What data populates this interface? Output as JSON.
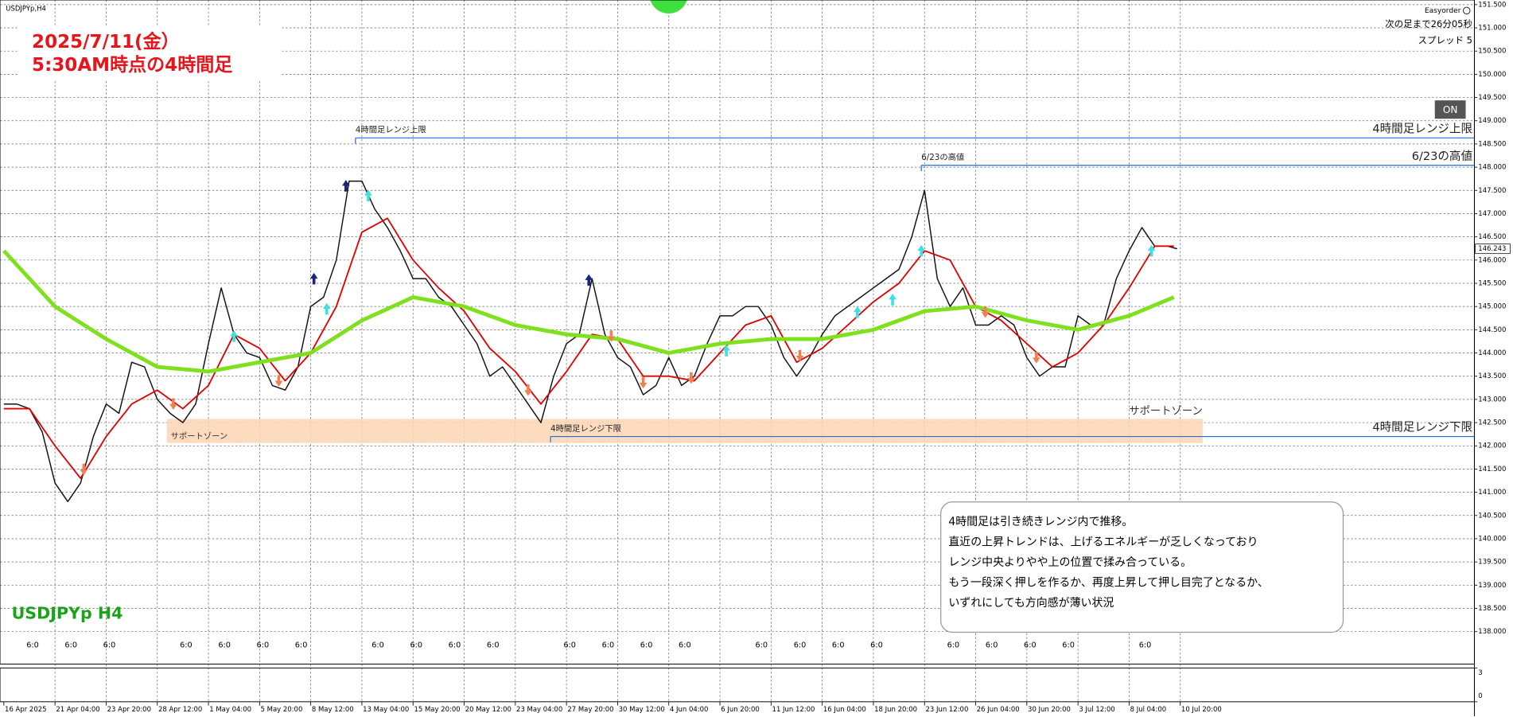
{
  "chart_data": {
    "type": "line",
    "symbol_label": "USDJPYp,H4",
    "title_lines": [
      "2025/7/11(金）",
      "5:30AM時点の4時間足"
    ],
    "watermark": "USDJPYp H4",
    "panel": {
      "name": "Easyorder",
      "countdown": "次の足まで26分05秒",
      "spread": "スプレッド 5",
      "button": "ON"
    },
    "annotation_lines": [
      "4時間足は引き続きレンジ内で推移。",
      "直近の上昇トレンドは、上げるエネルギーが乏しくなっており",
      "レンジ中央よりやや上の位置で揉み合っている。",
      "もう一段深く押しを作るか、再度上昇して押し目完了となるか、",
      "いずれにしても方向感が薄い状況"
    ],
    "xlim": [
      -1.2,
      460
    ],
    "xticks": [
      {
        "value": 0,
        "label": "16 Apr 2025"
      },
      {
        "value": 16,
        "label": "21 Apr 04:00"
      },
      {
        "value": 32,
        "label": "23 Apr 20:00"
      },
      {
        "value": 48,
        "label": "28 Apr 12:00"
      },
      {
        "value": 64,
        "label": "1 May 04:00"
      },
      {
        "value": 80,
        "label": "5 May 20:00"
      },
      {
        "value": 96,
        "label": "8 May 12:00"
      },
      {
        "value": 112,
        "label": "13 May 04:00"
      },
      {
        "value": 128,
        "label": "15 May 20:00"
      },
      {
        "value": 144,
        "label": "20 May 12:00"
      },
      {
        "value": 160,
        "label": "23 May 04:00"
      },
      {
        "value": 176,
        "label": "27 May 20:00"
      },
      {
        "value": 192,
        "label": "30 May 12:00"
      },
      {
        "value": 208,
        "label": "4 Jun 04:00"
      },
      {
        "value": 224,
        "label": "6 Jun 20:00"
      },
      {
        "value": 240,
        "label": "11 Jun 12:00"
      },
      {
        "value": 256,
        "label": "16 Jun 04:00"
      },
      {
        "value": 272,
        "label": "18 Jun 20:00"
      },
      {
        "value": 288,
        "label": "23 Jun 12:00"
      },
      {
        "value": 304,
        "label": "26 Jun 04:00"
      },
      {
        "value": 320,
        "label": "30 Jun 20:00"
      },
      {
        "value": 336,
        "label": "3 Jul 12:00"
      },
      {
        "value": 352,
        "label": "8 Jul 04:00"
      },
      {
        "value": 368,
        "label": "10 Jul 20:00"
      }
    ],
    "session_ticks": [
      {
        "value": 9,
        "label": "6:0"
      },
      {
        "value": 21,
        "label": "6:0"
      },
      {
        "value": 33,
        "label": "6:0"
      },
      {
        "value": 57,
        "label": "6:0"
      },
      {
        "value": 69,
        "label": "6:0"
      },
      {
        "value": 81,
        "label": "6:0"
      },
      {
        "value": 93,
        "label": "6:0"
      },
      {
        "value": 117,
        "label": "6:0"
      },
      {
        "value": 129,
        "label": "6:0"
      },
      {
        "value": 141,
        "label": "6:0"
      },
      {
        "value": 153,
        "label": "6:0"
      },
      {
        "value": 177,
        "label": "6:0"
      },
      {
        "value": 189,
        "label": "6:0"
      },
      {
        "value": 201,
        "label": "6:0"
      },
      {
        "value": 213,
        "label": "6:0"
      },
      {
        "value": 237,
        "label": "6:0"
      },
      {
        "value": 249,
        "label": "6:0"
      },
      {
        "value": 261,
        "label": "6:0"
      },
      {
        "value": 273,
        "label": "6:0"
      },
      {
        "value": 297,
        "label": "6:0"
      },
      {
        "value": 309,
        "label": "6:0"
      },
      {
        "value": 321,
        "label": "6:0"
      },
      {
        "value": 333,
        "label": "6:0"
      },
      {
        "value": 357,
        "label": "6:0"
      }
    ],
    "ylim": [
      137.3,
      151.6
    ],
    "yticks": [
      {
        "value": 138,
        "label": "138.000"
      },
      {
        "value": 138.5,
        "label": "138.500"
      },
      {
        "value": 139,
        "label": "139.000"
      },
      {
        "value": 139.5,
        "label": "139.500"
      },
      {
        "value": 140,
        "label": "140.000"
      },
      {
        "value": 140.5,
        "label": "140.500"
      },
      {
        "value": 141,
        "label": "141.000"
      },
      {
        "value": 141.5,
        "label": "141.500"
      },
      {
        "value": 142,
        "label": "142.000"
      },
      {
        "value": 142.5,
        "label": "142.500"
      },
      {
        "value": 143,
        "label": "143.000"
      },
      {
        "value": 143.5,
        "label": "143.500"
      },
      {
        "value": 144,
        "label": "144.000"
      },
      {
        "value": 144.5,
        "label": "144.500"
      },
      {
        "value": 145,
        "label": "145.000"
      },
      {
        "value": 145.5,
        "label": "145.500"
      },
      {
        "value": 146,
        "label": "146.000"
      },
      {
        "value": 146.5,
        "label": "146.500"
      },
      {
        "value": 147,
        "label": "147.000"
      },
      {
        "value": 147.5,
        "label": "147.500"
      },
      {
        "value": 148,
        "label": "148.000"
      },
      {
        "value": 148.5,
        "label": "148.500"
      },
      {
        "value": 149,
        "label": "149.000"
      },
      {
        "value": 149.5,
        "label": "149.500"
      },
      {
        "value": 150,
        "label": "150.000"
      },
      {
        "value": 150.5,
        "label": "150.500"
      },
      {
        "value": 151,
        "label": "151.000"
      },
      {
        "value": 151.5,
        "label": "151.500"
      }
    ],
    "grid": true,
    "last_price": 146.243,
    "series": [
      {
        "color": "#111111",
        "width": 1.2,
        "x": [
          0,
          4,
          8,
          12,
          16,
          20,
          24,
          28,
          32,
          36,
          40,
          44,
          48,
          52,
          56,
          60,
          64,
          68,
          72,
          76,
          80,
          84,
          88,
          92,
          96,
          100,
          104,
          108,
          112,
          116,
          120,
          124,
          128,
          132,
          136,
          140,
          144,
          148,
          152,
          156,
          160,
          164,
          168,
          172,
          176,
          180,
          184,
          188,
          192,
          196,
          200,
          204,
          208,
          212,
          216,
          220,
          224,
          228,
          232,
          236,
          240,
          244,
          248,
          252,
          256,
          260,
          264,
          268,
          272,
          276,
          280,
          284,
          288,
          292,
          296,
          300,
          304,
          308,
          312,
          316,
          320,
          324,
          328,
          332,
          336,
          340,
          344,
          348,
          352,
          356,
          360,
          364,
          367
        ],
        "values": [
          142.9,
          142.9,
          142.8,
          142.3,
          141.2,
          140.8,
          141.2,
          142.2,
          142.9,
          142.7,
          143.8,
          143.7,
          143.0,
          142.7,
          142.5,
          142.9,
          144.2,
          145.4,
          144.4,
          144.0,
          143.9,
          143.3,
          143.2,
          143.7,
          145.0,
          145.2,
          146.0,
          147.7,
          147.7,
          147.1,
          146.7,
          146.2,
          145.6,
          145.6,
          145.2,
          145.0,
          144.6,
          144.2,
          143.5,
          143.7,
          143.3,
          142.9,
          142.5,
          143.5,
          144.2,
          144.4,
          145.6,
          144.4,
          143.9,
          143.7,
          143.1,
          143.3,
          143.9,
          143.3,
          143.5,
          144.2,
          144.8,
          144.8,
          145.0,
          145.0,
          144.6,
          143.9,
          143.5,
          143.9,
          144.4,
          144.8,
          145.0,
          145.2,
          145.4,
          145.6,
          145.8,
          146.5,
          147.5,
          145.6,
          145.0,
          145.4,
          144.6,
          144.6,
          144.8,
          144.6,
          143.9,
          143.5,
          143.7,
          143.7,
          144.8,
          144.6,
          144.6,
          145.6,
          146.2,
          146.7,
          146.3,
          146.3,
          146.243
        ]
      },
      {
        "color": "#e00000",
        "width": 1.5,
        "x": [
          0,
          8,
          16,
          24,
          32,
          40,
          48,
          56,
          64,
          72,
          80,
          88,
          96,
          104,
          112,
          120,
          128,
          136,
          144,
          152,
          160,
          168,
          176,
          184,
          192,
          200,
          208,
          216,
          224,
          232,
          240,
          248,
          256,
          264,
          272,
          280,
          288,
          296,
          304,
          312,
          320,
          328,
          336,
          344,
          352,
          360,
          366
        ],
        "values": [
          142.8,
          142.8,
          142.0,
          141.3,
          142.2,
          142.9,
          143.2,
          142.8,
          143.3,
          144.4,
          144.1,
          143.4,
          144.0,
          145.0,
          146.6,
          146.9,
          146.0,
          145.4,
          144.9,
          144.1,
          143.6,
          142.9,
          143.6,
          144.4,
          144.3,
          143.5,
          143.5,
          143.4,
          144.0,
          144.6,
          144.8,
          143.8,
          144.1,
          144.6,
          145.1,
          145.5,
          146.2,
          146.0,
          145.0,
          144.7,
          144.2,
          143.7,
          144.0,
          144.6,
          145.4,
          146.3,
          146.3
        ]
      },
      {
        "color": "#7fe01e",
        "width": 4,
        "x": [
          0,
          16,
          32,
          48,
          64,
          80,
          96,
          112,
          128,
          144,
          160,
          176,
          192,
          208,
          224,
          240,
          256,
          272,
          288,
          304,
          320,
          336,
          352,
          366
        ],
        "values": [
          146.2,
          145.0,
          144.3,
          143.7,
          143.6,
          143.8,
          144.0,
          144.7,
          145.2,
          145.0,
          144.6,
          144.4,
          144.3,
          144.0,
          144.2,
          144.3,
          144.3,
          144.5,
          144.9,
          145.0,
          144.7,
          144.5,
          144.8,
          145.2
        ]
      }
    ],
    "levels": [
      {
        "label": "4時間足レンジ上限",
        "value": 148.63,
        "start": 110,
        "color": "#1e6fd9"
      },
      {
        "label": "6/23の高値",
        "value": 148.04,
        "start": 287,
        "color": "#1e6fd9"
      },
      {
        "label": "4時間足レンジ下限",
        "value": 142.2,
        "start": 171,
        "color": "#1e6fd9"
      }
    ],
    "zone": {
      "label": "サポートゾーン",
      "top": 142.58,
      "bottom": 142.06,
      "start": 51,
      "end": 375,
      "color": "#fcd5b4"
    },
    "signals": [
      {
        "direction": "up",
        "color": "#1a237e",
        "x": [
          97,
          107,
          183
        ],
        "values": [
          145.6,
          147.6,
          145.57
        ]
      },
      {
        "direction": "up",
        "color": "#3fe0e0",
        "x": [
          72,
          101,
          114,
          226,
          267,
          278,
          287,
          359
        ],
        "values": [
          144.36,
          144.95,
          147.39,
          144.05,
          144.88,
          145.15,
          146.2,
          146.2
        ]
      },
      {
        "direction": "down",
        "color": "#f08050",
        "x": [
          25,
          53,
          86,
          164,
          190,
          200,
          215,
          249,
          307,
          323
        ],
        "values": [
          141.49,
          142.9,
          143.4,
          143.2,
          144.36,
          143.36,
          143.46,
          143.94,
          144.88,
          143.9
        ]
      }
    ],
    "sub_panel": {
      "ylim": [
        0,
        3
      ],
      "yticks": [
        0,
        3
      ]
    }
  }
}
